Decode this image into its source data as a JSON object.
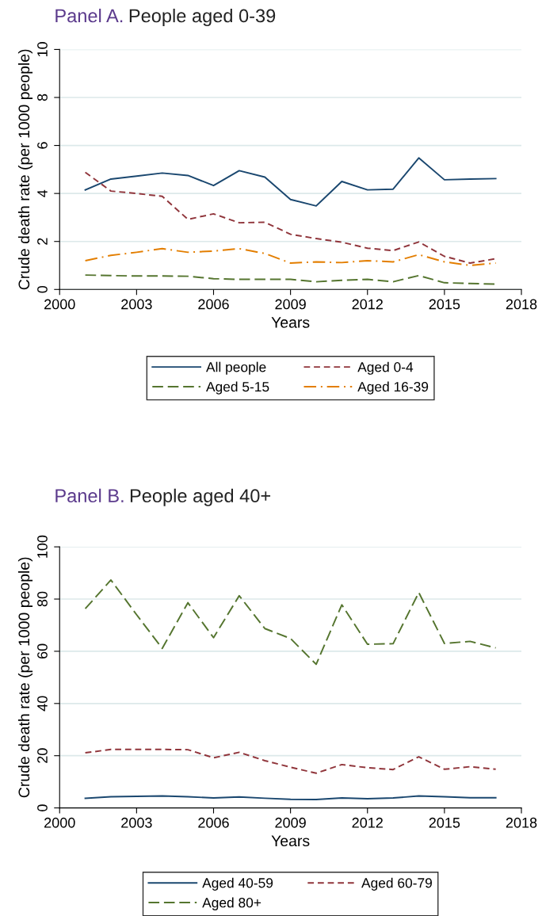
{
  "chart_data": [
    {
      "type": "line",
      "title": "Panel A.",
      "subtitle": "People aged 0-39",
      "xlabel": "Years",
      "ylabel": "Crude death rate (per 1000 people)",
      "x": [
        2001,
        2002,
        2003,
        2004,
        2005,
        2006,
        2007,
        2008,
        2009,
        2010,
        2011,
        2012,
        2013,
        2014,
        2015,
        2016,
        2017
      ],
      "series": [
        {
          "name": "All people",
          "color": "#1a476f",
          "line_style": "solid",
          "values": [
            4.15,
            4.6,
            4.72,
            4.85,
            4.75,
            4.33,
            4.95,
            4.68,
            3.75,
            3.48,
            4.5,
            4.15,
            4.18,
            5.48,
            4.57,
            4.6,
            4.62
          ]
        },
        {
          "name": "Aged 0-4",
          "color": "#90353b",
          "line_style": "dashed",
          "values": [
            4.88,
            4.1,
            4.0,
            3.88,
            2.92,
            3.15,
            2.78,
            2.8,
            2.3,
            2.12,
            1.97,
            1.72,
            1.62,
            1.98,
            1.38,
            1.1,
            1.28
          ]
        },
        {
          "name": "Aged 5-15",
          "color": "#55752f",
          "line_style": "longdash",
          "values": [
            0.6,
            0.58,
            0.56,
            0.56,
            0.55,
            0.45,
            0.42,
            0.42,
            0.42,
            0.32,
            0.38,
            0.42,
            0.32,
            0.58,
            0.28,
            0.25,
            0.22
          ]
        },
        {
          "name": "Aged 16-39",
          "color": "#e37e00",
          "line_style": "dashdot",
          "values": [
            1.2,
            1.42,
            1.55,
            1.7,
            1.55,
            1.6,
            1.7,
            1.5,
            1.1,
            1.15,
            1.12,
            1.2,
            1.15,
            1.45,
            1.15,
            1.0,
            1.1
          ]
        }
      ],
      "xlim": [
        2000,
        2018
      ],
      "xticks": [
        2000,
        2003,
        2006,
        2009,
        2012,
        2015,
        2018
      ],
      "ylim": [
        0,
        10
      ],
      "yticks": [
        0,
        2,
        4,
        6,
        8,
        10
      ],
      "grid": "y",
      "legend": "bottom"
    },
    {
      "type": "line",
      "title": "Panel B.",
      "subtitle": "People aged 40+",
      "xlabel": "Years",
      "ylabel": "Crude death rate (per 1000 people)",
      "x": [
        2001,
        2002,
        2003,
        2004,
        2005,
        2006,
        2007,
        2008,
        2009,
        2010,
        2011,
        2012,
        2013,
        2014,
        2015,
        2016,
        2017
      ],
      "series": [
        {
          "name": "Aged 40-59",
          "color": "#1a476f",
          "line_style": "solid",
          "values": [
            3.7,
            4.3,
            4.4,
            4.6,
            4.3,
            3.8,
            4.2,
            3.7,
            3.3,
            3.2,
            3.8,
            3.5,
            3.8,
            4.6,
            4.3,
            3.9,
            3.9
          ]
        },
        {
          "name": "Aged 60-79",
          "color": "#90353b",
          "line_style": "dashed",
          "values": [
            21.1,
            22.4,
            22.4,
            22.4,
            22.3,
            19.2,
            21.3,
            18.1,
            15.6,
            13.3,
            16.6,
            15.4,
            14.7,
            19.6,
            14.8,
            15.8,
            14.8
          ]
        },
        {
          "name": "Aged 80+",
          "color": "#55752f",
          "line_style": "longdash",
          "values": [
            76.3,
            87.3,
            74,
            61.1,
            78.6,
            65.2,
            81.3,
            68.7,
            64.9,
            55,
            77.8,
            62.7,
            62.9,
            82.5,
            63,
            63.8,
            61.3
          ]
        }
      ],
      "xlim": [
        2000,
        2018
      ],
      "xticks": [
        2000,
        2003,
        2006,
        2009,
        2012,
        2015,
        2018
      ],
      "ylim": [
        0,
        100
      ],
      "yticks": [
        0,
        20,
        40,
        60,
        80,
        100
      ],
      "grid": "y",
      "legend": "bottom"
    }
  ]
}
